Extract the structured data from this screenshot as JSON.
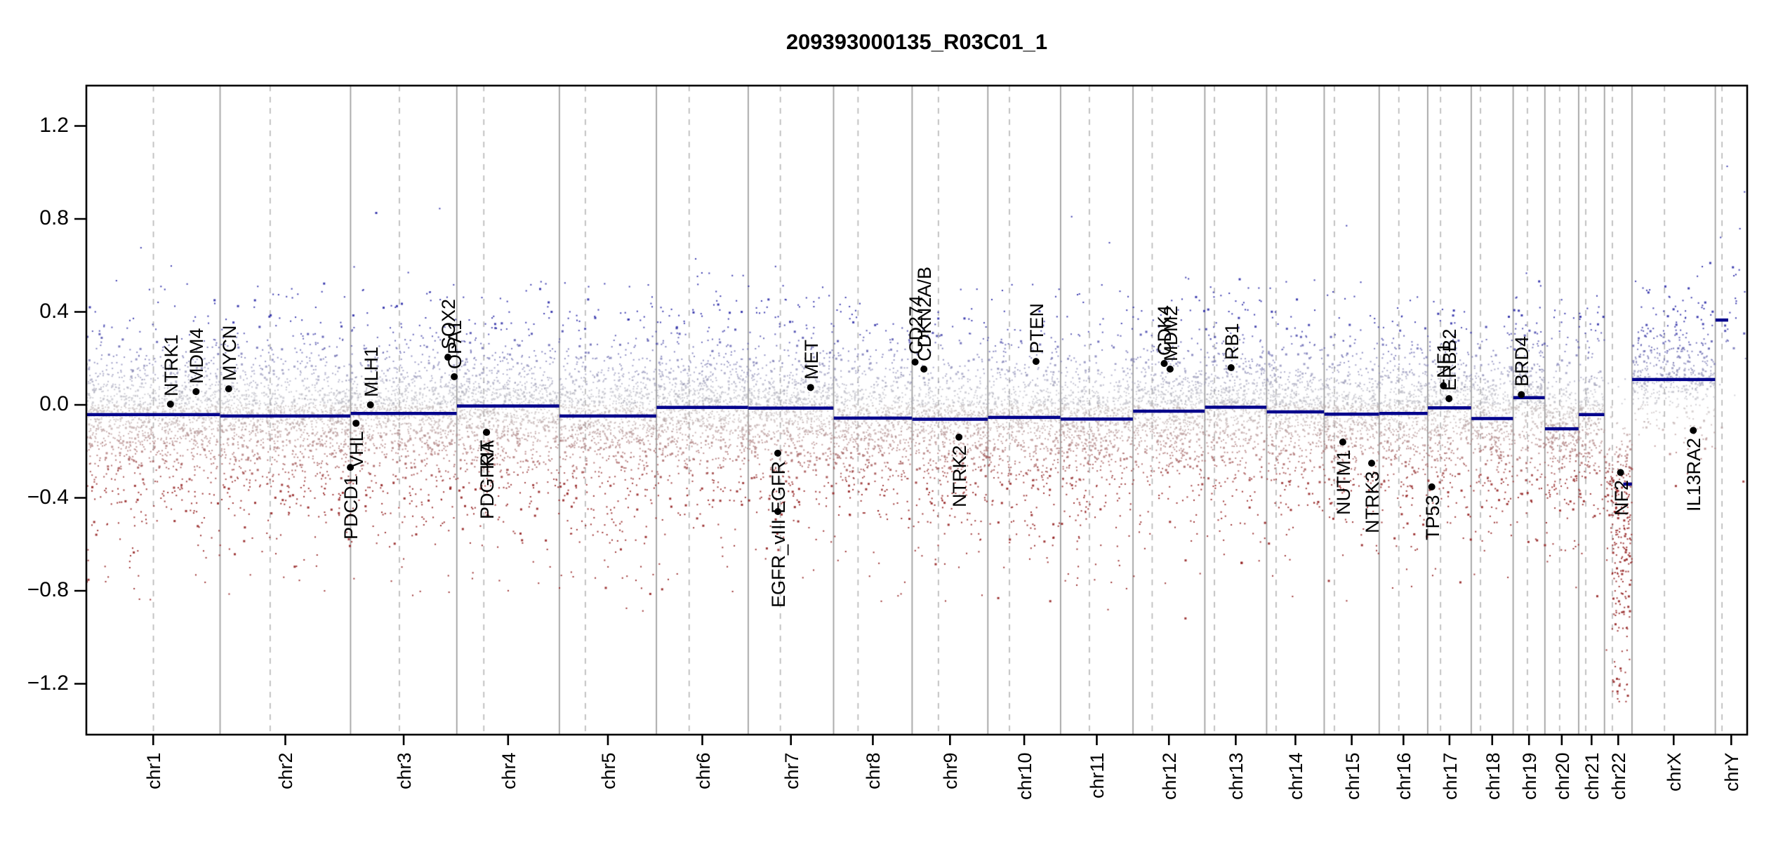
{
  "title": "209393000135_R03C01_1",
  "chart_data": {
    "type": "scatter",
    "title": "209393000135_R03C01_1",
    "subtitle": "",
    "xlabel": "",
    "ylabel": "",
    "ylim": [
      -1.37,
      1.37
    ],
    "y_tick_values": [
      1.2,
      0.8,
      0.4,
      0.0,
      -0.4,
      -0.8,
      -1.2
    ],
    "y_tick_labels": [
      "1.2",
      "0.8",
      "0.4",
      "0.0",
      "−0.4",
      "−0.8",
      "−1.2"
    ],
    "x_tick_labels": [
      "chr1",
      "chr2",
      "chr3",
      "chr4",
      "chr5",
      "chr6",
      "chr7",
      "chr8",
      "chr9",
      "chr10",
      "chr11",
      "chr12",
      "chr13",
      "chr14",
      "chr15",
      "chr16",
      "chr17",
      "chr18",
      "chr19",
      "chr20",
      "chr21",
      "chr22",
      "chrX",
      "chrY"
    ],
    "grid": "chromosome boundaries solid, centromeres dashed",
    "legend": "none",
    "genome_total_mb": 3095.7,
    "chromosomes": [
      {
        "name": "chr1",
        "size_mb": 249.3,
        "centromere_mb": 125.0,
        "segment_value": -0.042,
        "seg_start_mb": 0.3,
        "seg_end_mb": 249.0,
        "density": 7.5,
        "pos_scale": 0.115,
        "neg_scale": 0.15
      },
      {
        "name": "chr2",
        "size_mb": 243.2,
        "centromere_mb": 93.3,
        "segment_value": -0.048,
        "seg_start_mb": 0.3,
        "seg_end_mb": 242.9,
        "density": 7.5,
        "pos_scale": 0.115,
        "neg_scale": 0.15
      },
      {
        "name": "chr3",
        "size_mb": 198.0,
        "centromere_mb": 91.0,
        "segment_value": -0.037,
        "seg_start_mb": 0.3,
        "seg_end_mb": 197.7,
        "density": 7.5,
        "pos_scale": 0.115,
        "neg_scale": 0.15
      },
      {
        "name": "chr4",
        "size_mb": 191.2,
        "centromere_mb": 50.4,
        "segment_value": -0.005,
        "seg_start_mb": 0.3,
        "seg_end_mb": 190.9,
        "density": 7.5,
        "pos_scale": 0.115,
        "neg_scale": 0.15
      },
      {
        "name": "chr5",
        "size_mb": 180.9,
        "centromere_mb": 48.4,
        "segment_value": -0.048,
        "seg_start_mb": 0.3,
        "seg_end_mb": 180.6,
        "density": 7.5,
        "pos_scale": 0.115,
        "neg_scale": 0.15
      },
      {
        "name": "chr6",
        "size_mb": 171.1,
        "centromere_mb": 61.0,
        "segment_value": -0.011,
        "seg_start_mb": 0.3,
        "seg_end_mb": 170.8,
        "density": 7.5,
        "pos_scale": 0.115,
        "neg_scale": 0.15
      },
      {
        "name": "chr7",
        "size_mb": 159.1,
        "centromere_mb": 59.9,
        "segment_value": -0.014,
        "seg_start_mb": 0.3,
        "seg_end_mb": 158.8,
        "density": 7.5,
        "pos_scale": 0.115,
        "neg_scale": 0.155
      },
      {
        "name": "chr8",
        "size_mb": 146.4,
        "centromere_mb": 45.6,
        "segment_value": -0.057,
        "seg_start_mb": 0.3,
        "seg_end_mb": 146.1,
        "density": 7.5,
        "pos_scale": 0.115,
        "neg_scale": 0.15
      },
      {
        "name": "chr9",
        "size_mb": 141.2,
        "centromere_mb": 49.0,
        "segment_value": -0.062,
        "seg_start_mb": 0.3,
        "seg_end_mb": 140.9,
        "density": 7.5,
        "pos_scale": 0.115,
        "neg_scale": 0.155
      },
      {
        "name": "chr10",
        "size_mb": 135.5,
        "centromere_mb": 40.2,
        "segment_value": -0.054,
        "seg_start_mb": 0.3,
        "seg_end_mb": 135.2,
        "density": 7.5,
        "pos_scale": 0.115,
        "neg_scale": 0.15
      },
      {
        "name": "chr11",
        "size_mb": 135.0,
        "centromere_mb": 53.7,
        "segment_value": -0.061,
        "seg_start_mb": 0.3,
        "seg_end_mb": 134.7,
        "density": 7.5,
        "pos_scale": 0.115,
        "neg_scale": 0.15
      },
      {
        "name": "chr12",
        "size_mb": 133.9,
        "centromere_mb": 35.8,
        "segment_value": -0.027,
        "seg_start_mb": 0.3,
        "seg_end_mb": 133.6,
        "density": 7.5,
        "pos_scale": 0.115,
        "neg_scale": 0.15
      },
      {
        "name": "chr13",
        "size_mb": 115.2,
        "centromere_mb": 17.9,
        "segment_value": -0.01,
        "seg_start_mb": 0.3,
        "seg_end_mb": 114.9,
        "density": 7.5,
        "pos_scale": 0.115,
        "neg_scale": 0.15
      },
      {
        "name": "chr14",
        "size_mb": 107.3,
        "centromere_mb": 17.6,
        "segment_value": -0.03,
        "seg_start_mb": 0.3,
        "seg_end_mb": 107.0,
        "density": 7.5,
        "pos_scale": 0.115,
        "neg_scale": 0.15
      },
      {
        "name": "chr15",
        "size_mb": 102.5,
        "centromere_mb": 19.0,
        "segment_value": -0.04,
        "seg_start_mb": 0.3,
        "seg_end_mb": 102.2,
        "density": 7.5,
        "pos_scale": 0.115,
        "neg_scale": 0.15
      },
      {
        "name": "chr16",
        "size_mb": 90.4,
        "centromere_mb": 36.6,
        "segment_value": -0.037,
        "seg_start_mb": 0.3,
        "seg_end_mb": 90.1,
        "density": 7.5,
        "pos_scale": 0.115,
        "neg_scale": 0.15
      },
      {
        "name": "chr17",
        "size_mb": 81.2,
        "centromere_mb": 24.0,
        "segment_value": -0.013,
        "seg_start_mb": 0.3,
        "seg_end_mb": 80.9,
        "density": 7.5,
        "pos_scale": 0.115,
        "neg_scale": 0.15
      },
      {
        "name": "chr18",
        "size_mb": 78.1,
        "centromere_mb": 17.2,
        "segment_value": -0.059,
        "seg_start_mb": 0.3,
        "seg_end_mb": 77.8,
        "density": 7.5,
        "pos_scale": 0.115,
        "neg_scale": 0.15
      },
      {
        "name": "chr19",
        "size_mb": 59.1,
        "centromere_mb": 26.5,
        "segment_value": 0.031,
        "seg_start_mb": 0.3,
        "seg_end_mb": 58.8,
        "density": 7.5,
        "pos_scale": 0.115,
        "neg_scale": 0.145
      },
      {
        "name": "chr20",
        "size_mb": 63.0,
        "centromere_mb": 27.5,
        "segment_value": -0.103,
        "seg_start_mb": 0.3,
        "seg_end_mb": 62.7,
        "density": 7.5,
        "pos_scale": 0.115,
        "neg_scale": 0.15
      },
      {
        "name": "chr21",
        "size_mb": 48.1,
        "centromere_mb": 13.2,
        "segment_value": -0.042,
        "seg_start_mb": 0.3,
        "seg_end_mb": 47.8,
        "density": 7.5,
        "pos_scale": 0.115,
        "neg_scale": 0.15
      },
      {
        "name": "chr22",
        "size_mb": 51.3,
        "centromere_mb": 14.7,
        "segment_value": -0.341,
        "seg_start_mb": 35.0,
        "seg_end_mb": 51.1,
        "density": 7.5,
        "pos_scale": 0.115,
        "neg_scale": 0.17,
        "tail_frac": 0.45,
        "tail_shift": 0.15,
        "tail_scale": 0.3
      },
      {
        "name": "chrX",
        "size_mb": 155.3,
        "centromere_mb": 60.6,
        "segment_value": 0.109,
        "seg_start_mb": 0.3,
        "seg_end_mb": 155.0,
        "density": 4.5,
        "pos_scale": 0.13,
        "neg_scale": 0.085
      },
      {
        "name": "chrY",
        "size_mb": 59.4,
        "centromere_mb": 12.5,
        "segment_value": 0.365,
        "seg_start_mb": 0.3,
        "seg_end_mb": 24.0,
        "density": 0.6,
        "pos_scale": 0.25,
        "neg_scale": 0.12
      }
    ],
    "gene_markers": [
      {
        "name": "NTRK1",
        "chrom": "chr1",
        "pos_mb": 156.8,
        "value": 0.003,
        "label_side": "above"
      },
      {
        "name": "MDM4",
        "chrom": "chr1",
        "pos_mb": 204.5,
        "value": 0.057,
        "label_side": "above"
      },
      {
        "name": "MYCN",
        "chrom": "chr2",
        "pos_mb": 16.1,
        "value": 0.069,
        "label_side": "above"
      },
      {
        "name": "PDCD1",
        "chrom": "chr2",
        "pos_mb": 242.8,
        "value": -0.269,
        "label_side": "below"
      },
      {
        "name": "VHL",
        "chrom": "chr3",
        "pos_mb": 10.2,
        "value": -0.079,
        "label_side": "below"
      },
      {
        "name": "MLH1",
        "chrom": "chr3",
        "pos_mb": 37.0,
        "value": 0.0,
        "label_side": "above"
      },
      {
        "name": "SOX2",
        "chrom": "chr3",
        "pos_mb": 181.4,
        "value": 0.205,
        "label_side": "above"
      },
      {
        "name": "OPA1",
        "chrom": "chr3",
        "pos_mb": 193.3,
        "value": 0.121,
        "label_side": "above"
      },
      {
        "name": "PDGFRA",
        "chrom": "chr4",
        "pos_mb": 55.1,
        "value": -0.118,
        "label_side": "below"
      },
      {
        "name": "KIT",
        "chrom": "chr4",
        "pos_mb": 55.5,
        "value": -0.118,
        "label_side": "below"
      },
      {
        "name": "EGFR",
        "chrom": "chr7",
        "pos_mb": 55.1,
        "value": -0.208,
        "label_side": "below"
      },
      {
        "name": "EGFR_vIII",
        "chrom": "chr7",
        "pos_mb": 55.2,
        "value": -0.459,
        "label_side": "below"
      },
      {
        "name": "MET",
        "chrom": "chr7",
        "pos_mb": 116.3,
        "value": 0.075,
        "label_side": "above"
      },
      {
        "name": "CD274",
        "chrom": "chr9",
        "pos_mb": 5.5,
        "value": 0.184,
        "label_side": "above"
      },
      {
        "name": "CDKN2A/B",
        "chrom": "chr9",
        "pos_mb": 22.0,
        "value": 0.154,
        "label_side": "above"
      },
      {
        "name": "NTRK2",
        "chrom": "chr9",
        "pos_mb": 87.3,
        "value": -0.139,
        "label_side": "below"
      },
      {
        "name": "PTEN",
        "chrom": "chr10",
        "pos_mb": 89.7,
        "value": 0.187,
        "label_side": "above"
      },
      {
        "name": "CDK4",
        "chrom": "chr12",
        "pos_mb": 58.1,
        "value": 0.178,
        "label_side": "above"
      },
      {
        "name": "MDM2",
        "chrom": "chr12",
        "pos_mb": 69.2,
        "value": 0.154,
        "label_side": "above"
      },
      {
        "name": "RB1",
        "chrom": "chr13",
        "pos_mb": 48.9,
        "value": 0.16,
        "label_side": "above"
      },
      {
        "name": "NUTM1",
        "chrom": "chr15",
        "pos_mb": 34.6,
        "value": -0.16,
        "label_side": "below"
      },
      {
        "name": "NTRK3",
        "chrom": "chr15",
        "pos_mb": 88.4,
        "value": -0.251,
        "label_side": "below"
      },
      {
        "name": "TP53",
        "chrom": "chr17",
        "pos_mb": 7.6,
        "value": -0.353,
        "label_side": "below"
      },
      {
        "name": "NF1",
        "chrom": "chr17",
        "pos_mb": 29.4,
        "value": 0.082,
        "label_side": "above"
      },
      {
        "name": "ERBB2",
        "chrom": "chr17",
        "pos_mb": 39.7,
        "value": 0.027,
        "label_side": "above"
      },
      {
        "name": "BRD4",
        "chrom": "chr19",
        "pos_mb": 15.3,
        "value": 0.044,
        "label_side": "above"
      },
      {
        "name": "NF2",
        "chrom": "chr22",
        "pos_mb": 30.0,
        "value": -0.291,
        "label_side": "below"
      },
      {
        "name": "IL13RA2",
        "chrom": "chrX",
        "pos_mb": 114.2,
        "value": -0.11,
        "label_side": "below"
      }
    ],
    "colors": {
      "background": "#ffffff",
      "segment_line": "#00008b",
      "point_gain": "#2828a6",
      "point_loss": "#941e1e",
      "point_neutral": "#acacb4",
      "boundary_line": "#9b9b9b",
      "centromere_line": "#b8b8b8",
      "gene_marker": "#000000",
      "axis": "#000000"
    }
  }
}
